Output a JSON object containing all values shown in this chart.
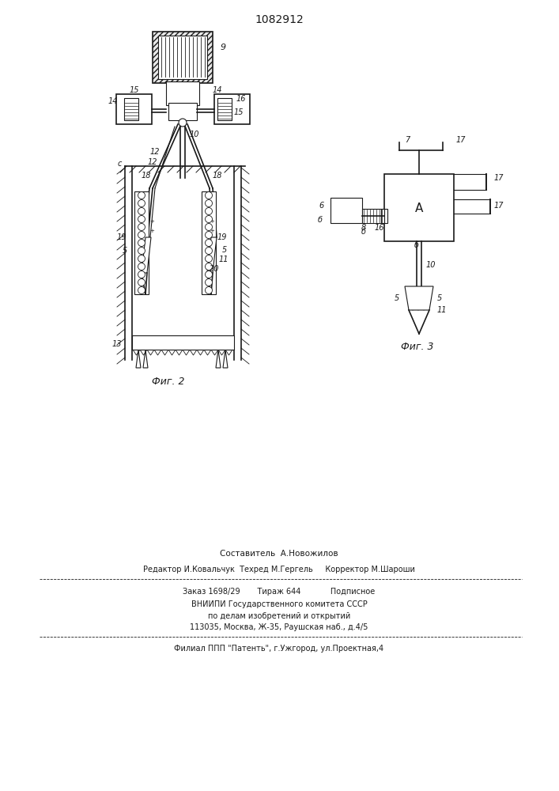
{
  "title": "1082912",
  "fig2_label": "Фиг. 2",
  "fig3_label": "Фиг. 3",
  "bottom_text_line1": "Составитель  А.Новожилов",
  "bottom_text_line2": "Редактор И.Ковальчук  Техред М.Гергель     Корректор М.Шароши",
  "bottom_text_line3": "Заказ 1698/29       Тираж 644            Подписное",
  "bottom_text_line4": "ВНИИПИ Государственного комитета СССР",
  "bottom_text_line5": "по делам изобретений и открытий",
  "bottom_text_line6": "113035, Москва, Ж-35, Раушская наб., д.4/5",
  "bottom_text_line7": "Филиал ППП \"Патенть\", г.Ужгород, ул.Проектная,4",
  "bg_color": "#ffffff",
  "line_color": "#1a1a1a"
}
